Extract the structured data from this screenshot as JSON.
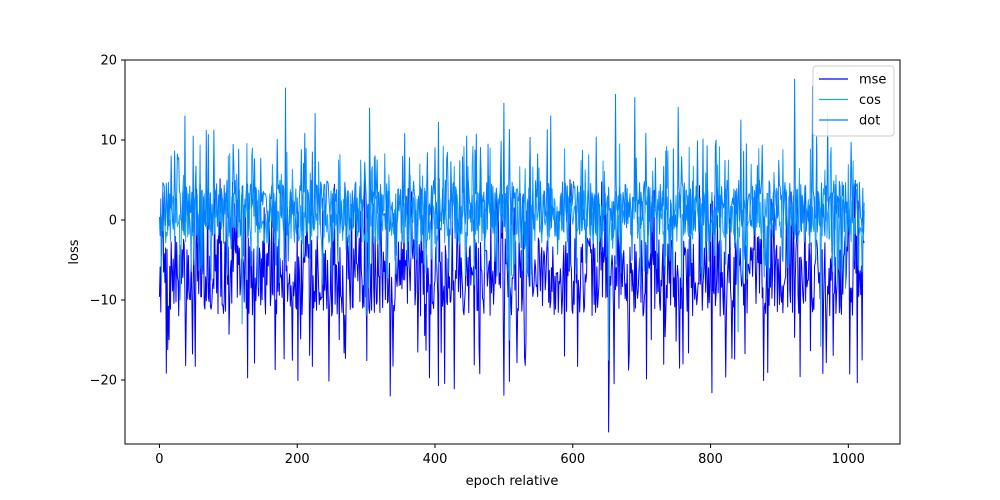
{
  "chart_data": {
    "type": "line",
    "title": "",
    "xlabel": "epoch relative",
    "ylabel": "loss",
    "xlim": [
      -50,
      1075
    ],
    "ylim": [
      -28,
      20
    ],
    "xticks": [
      0,
      200,
      400,
      600,
      800,
      1000
    ],
    "yticks": [
      -20,
      -10,
      0,
      10,
      20
    ],
    "n_points": 1024,
    "legend_position": "top-right",
    "grid": false,
    "series": [
      {
        "name": "mse",
        "color": "#0000ff",
        "mean": -6.5,
        "typical_range": [
          -12,
          -2
        ],
        "spikes_up": [
          [
            5,
            3.5
          ],
          [
            125,
            2
          ],
          [
            330,
            2.5
          ],
          [
            515,
            1.5
          ],
          [
            640,
            0.5
          ],
          [
            800,
            2
          ],
          [
            1000,
            2.5
          ]
        ],
        "spikes_down": [
          [
            12,
            -16.2
          ],
          [
            38,
            -18.2
          ],
          [
            52,
            -18.3
          ],
          [
            168,
            -18.7
          ],
          [
            222,
            -18.3
          ],
          [
            270,
            -17.3
          ],
          [
            335,
            -22
          ],
          [
            375,
            -16.5
          ],
          [
            405,
            -20.7
          ],
          [
            428,
            -21.1
          ],
          [
            500,
            -21.9
          ],
          [
            588,
            -17
          ],
          [
            652,
            -26.5
          ],
          [
            760,
            -18
          ],
          [
            802,
            -21.6
          ],
          [
            930,
            -19.6
          ],
          [
            1020,
            -17.5
          ]
        ]
      },
      {
        "name": "cos",
        "color": "#1ea0ff",
        "mean": 0.5,
        "typical_range": [
          -3,
          4
        ],
        "spikes_up": [
          [
            100,
            8
          ],
          [
            260,
            7.5
          ],
          [
            480,
            9
          ],
          [
            690,
            8.5
          ],
          [
            960,
            7.8
          ]
        ],
        "spikes_down": [
          [
            30,
            -10
          ],
          [
            120,
            -13
          ],
          [
            300,
            -12
          ],
          [
            508,
            -15
          ],
          [
            652,
            -17.5
          ],
          [
            840,
            -14
          ],
          [
            960,
            -15.8
          ]
        ]
      },
      {
        "name": "dot",
        "color": "#0080ff",
        "mean": 1.0,
        "typical_range": [
          -2,
          5
        ],
        "spikes_up": [
          [
            37,
            13
          ],
          [
            68,
            11.2
          ],
          [
            183,
            16.5
          ],
          [
            226,
            13.3
          ],
          [
            305,
            14
          ],
          [
            405,
            12.2
          ],
          [
            500,
            14.6
          ],
          [
            568,
            13
          ],
          [
            662,
            15.7
          ],
          [
            690,
            15.3
          ],
          [
            753,
            14.1
          ],
          [
            844,
            12.5
          ],
          [
            922,
            17.6
          ],
          [
            948,
            16.7
          ],
          [
            970,
            13.4
          ]
        ],
        "spikes_down": [
          [
            60,
            -6
          ],
          [
            250,
            -7
          ],
          [
            420,
            -6.5
          ],
          [
            770,
            -7
          ],
          [
            990,
            -6
          ]
        ]
      }
    ]
  }
}
